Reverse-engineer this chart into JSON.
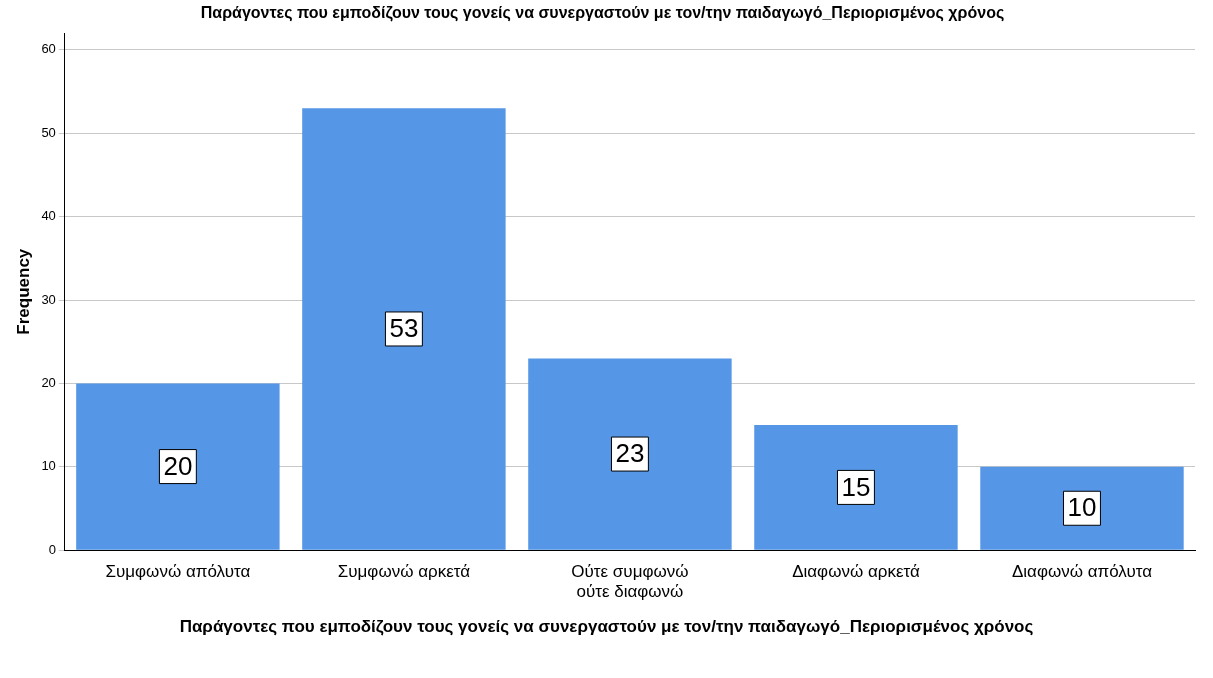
{
  "chart_data": {
    "type": "bar",
    "title": "Παράγοντες που εμποδίζουν τους γονείς να συνεργαστούν με τον/την παιδαγωγό_Περιορισμένος χρόνος",
    "xlabel": "Παράγοντες που εμποδίζουν τους γονείς να συνεργαστούν με τον/την παιδαγωγό_Περιορισμένος χρόνος",
    "ylabel": "Frequency",
    "categories": [
      "Συμφωνώ απόλυτα",
      "Συμφωνώ αρκετά",
      "Ούτε συμφωνώ ούτε διαφωνώ",
      "Διαφωνώ αρκετά",
      "Διαφωνώ απόλυτα"
    ],
    "values": [
      20,
      53,
      23,
      15,
      10
    ],
    "color": "#5596e6",
    "ylim": [
      0,
      62
    ],
    "yticks": [
      0,
      10,
      20,
      30,
      40,
      50,
      60
    ],
    "grid": "y",
    "data_labels": true,
    "legend": false
  }
}
